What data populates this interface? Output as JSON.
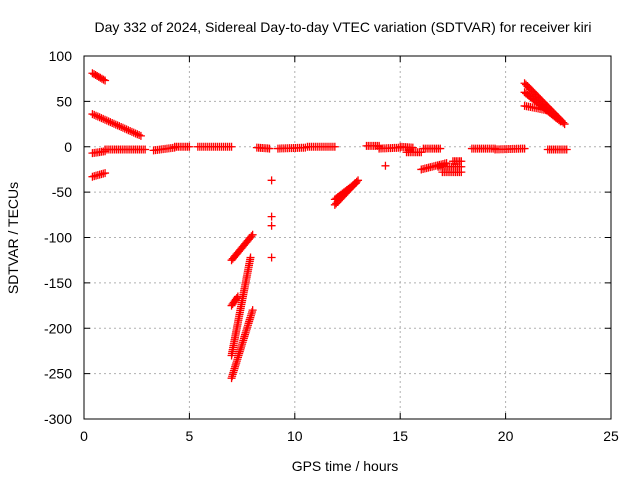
{
  "chart_data": {
    "type": "scatter",
    "title": "Day 332 of 2024, Sidereal Day-to-day VTEC variation (SDTVAR) for receiver kiri",
    "xlabel": "GPS time / hours",
    "ylabel": "SDTVAR / TECUs",
    "xlim": [
      0,
      25
    ],
    "ylim": [
      -300,
      100
    ],
    "xticks": [
      0,
      5,
      10,
      15,
      20,
      25
    ],
    "yticks": [
      100,
      50,
      0,
      -50,
      -100,
      -150,
      -200,
      -250,
      -300
    ],
    "grid": true,
    "marker": "+",
    "color": "#ff0000",
    "segments": [
      {
        "x": [
          0.4,
          1.0
        ],
        "y": [
          81,
          73
        ]
      },
      {
        "x": [
          0.4,
          2.7
        ],
        "y": [
          36,
          12
        ]
      },
      {
        "x": [
          0.4,
          1.0
        ],
        "y": [
          -7,
          -5
        ]
      },
      {
        "x": [
          0.4,
          1.0
        ],
        "y": [
          -33,
          -29
        ]
      },
      {
        "x": [
          1.0,
          2.9
        ],
        "y": [
          -3,
          -3
        ]
      },
      {
        "x": [
          3.3,
          4.3
        ],
        "y": [
          -4,
          -1
        ]
      },
      {
        "x": [
          4.3,
          5.0
        ],
        "y": [
          0,
          0
        ]
      },
      {
        "x": [
          5.4,
          7.0
        ],
        "y": [
          0,
          0
        ]
      },
      {
        "x": [
          8.2,
          8.8
        ],
        "y": [
          -1,
          -2
        ]
      },
      {
        "x": [
          9.2,
          10.5
        ],
        "y": [
          -2,
          -1
        ]
      },
      {
        "x": [
          10.6,
          11.9
        ],
        "y": [
          0,
          0
        ]
      },
      {
        "x": [
          7.0,
          8.0
        ],
        "y": [
          -125,
          -97
        ]
      },
      {
        "x": [
          7.0,
          8.0
        ],
        "y": [
          -255,
          -180
        ]
      },
      {
        "x": [
          7.0,
          7.9
        ],
        "y": [
          -230,
          -122
        ]
      },
      {
        "x": [
          7.0,
          7.3
        ],
        "y": [
          -175,
          -165
        ]
      },
      {
        "x": [
          11.9,
          13.0
        ],
        "y": [
          -64,
          -37
        ]
      },
      {
        "x": [
          11.9,
          12.9
        ],
        "y": [
          -58,
          -40
        ]
      },
      {
        "x": [
          13.4,
          14.0
        ],
        "y": [
          1,
          1
        ]
      },
      {
        "x": [
          14.0,
          15.0
        ],
        "y": [
          -2,
          -1
        ]
      },
      {
        "x": [
          15.0,
          15.6
        ],
        "y": [
          0,
          -1
        ]
      },
      {
        "x": [
          15.3,
          16.0
        ],
        "y": [
          -6,
          -6
        ]
      },
      {
        "x": [
          16.1,
          16.9
        ],
        "y": [
          -2,
          -2
        ]
      },
      {
        "x": [
          16.0,
          17.2
        ],
        "y": [
          -25,
          -18
        ]
      },
      {
        "x": [
          16.8,
          17.9
        ],
        "y": [
          -22,
          -22
        ]
      },
      {
        "x": [
          17.0,
          17.9
        ],
        "y": [
          -28,
          -28
        ]
      },
      {
        "x": [
          17.5,
          17.9
        ],
        "y": [
          -16,
          -16
        ]
      },
      {
        "x": [
          18.4,
          19.5
        ],
        "y": [
          -2,
          -2
        ]
      },
      {
        "x": [
          19.5,
          20.9
        ],
        "y": [
          -3,
          -2
        ]
      },
      {
        "x": [
          20.9,
          22.8
        ],
        "y": [
          70,
          25
        ]
      },
      {
        "x": [
          20.9,
          22.6
        ],
        "y": [
          60,
          28
        ]
      },
      {
        "x": [
          20.9,
          22.0
        ],
        "y": [
          45,
          40
        ]
      },
      {
        "x": [
          22.0,
          22.9
        ],
        "y": [
          -3,
          -3
        ]
      }
    ],
    "points": [
      {
        "x": 8.9,
        "y": -37
      },
      {
        "x": 8.9,
        "y": -77
      },
      {
        "x": 8.9,
        "y": -87
      },
      {
        "x": 8.9,
        "y": -122
      },
      {
        "x": 14.3,
        "y": -21
      },
      {
        "x": 14.0,
        "y": 0
      }
    ]
  }
}
